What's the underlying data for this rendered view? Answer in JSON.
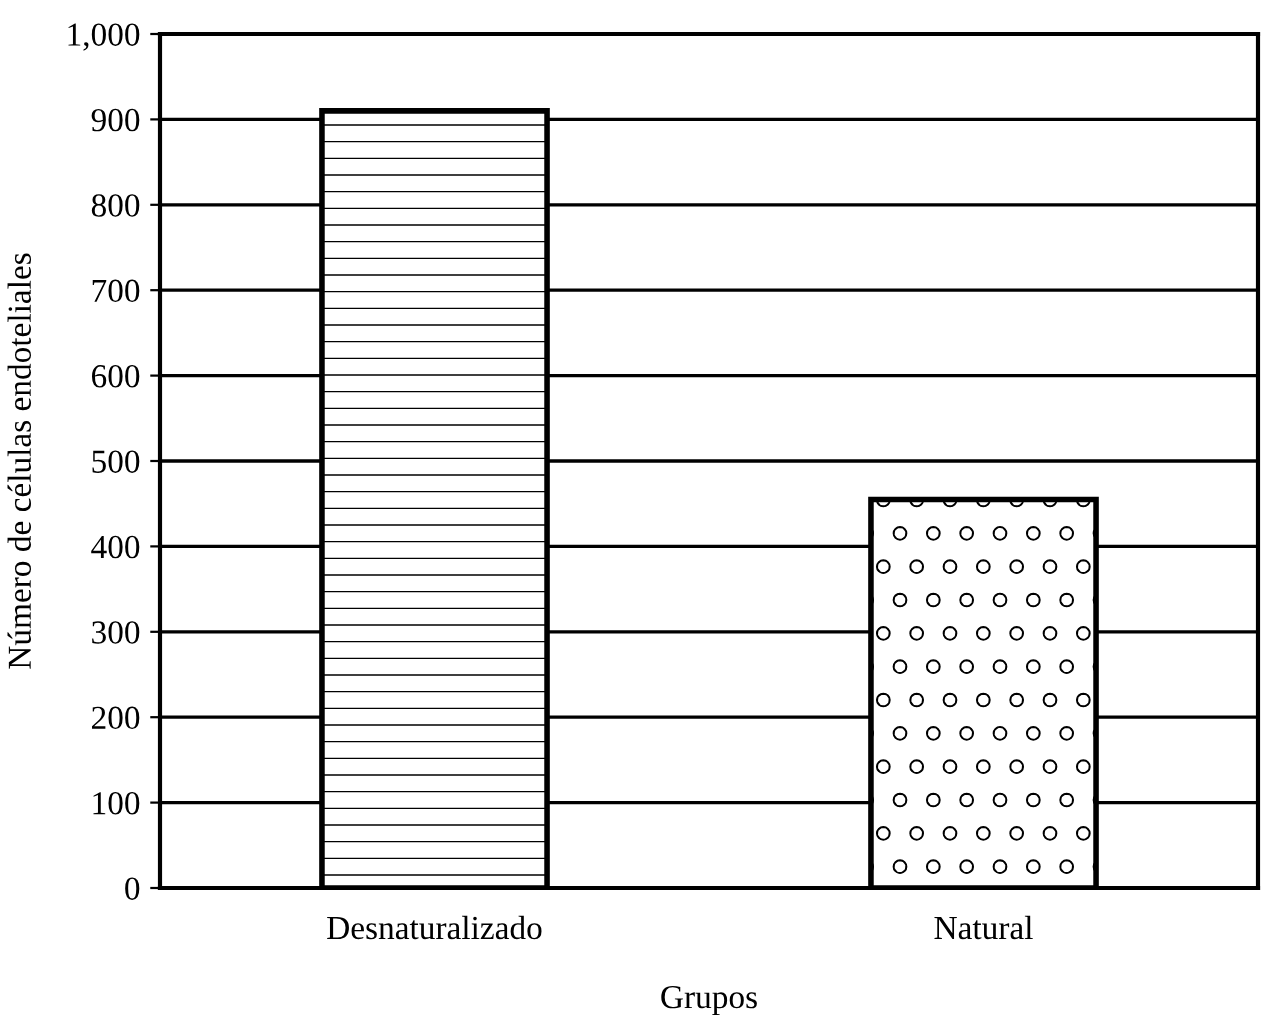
{
  "chart_data": {
    "type": "bar",
    "xlabel": "Grupos",
    "ylabel": "Número de células endoteliales",
    "categories": [
      "Desnaturalizado",
      "Natural"
    ],
    "values": [
      910,
      455
    ],
    "color": "#000000",
    "ylim": [
      0,
      1000
    ],
    "yticks": [
      0,
      100,
      200,
      300,
      400,
      500,
      600,
      700,
      800,
      900,
      {
        "value": 1000,
        "label": "1,000"
      }
    ],
    "grid": "y"
  }
}
